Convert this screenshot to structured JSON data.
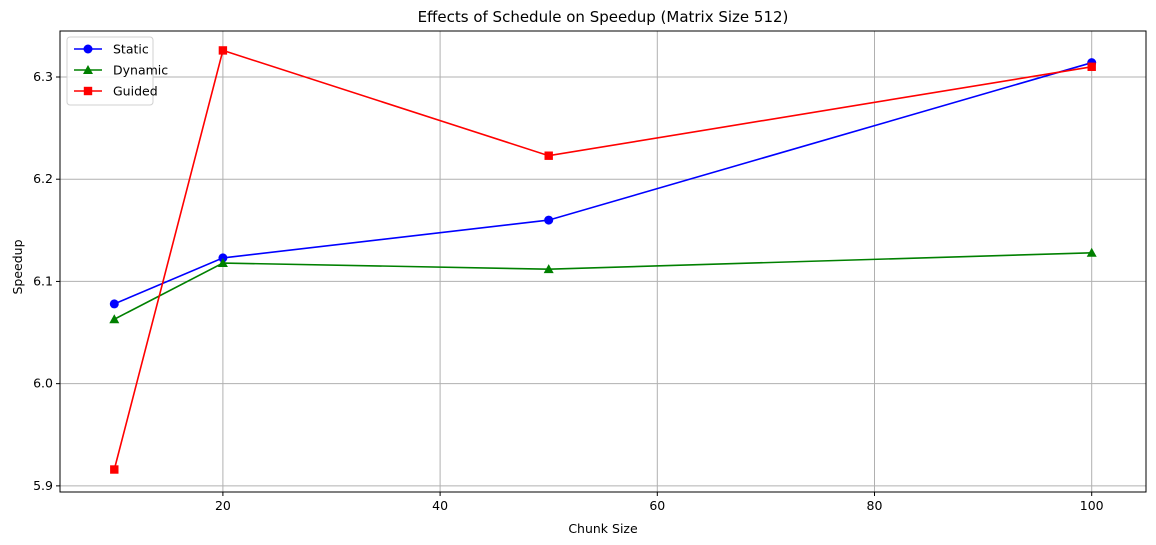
{
  "chart_data": {
    "type": "line",
    "title": "Effects of Schedule on Speedup (Matrix Size 512)",
    "xlabel": "Chunk Size",
    "ylabel": "Speedup",
    "x": [
      10,
      20,
      50,
      100
    ],
    "xlim": [
      5,
      105
    ],
    "ylim": [
      5.894,
      6.345
    ],
    "xticks": [
      20,
      40,
      60,
      80,
      100
    ],
    "yticks": [
      5.9,
      6.0,
      6.1,
      6.2,
      6.3
    ],
    "xtick_labels": [
      "20",
      "40",
      "60",
      "80",
      "100"
    ],
    "ytick_labels": [
      "5.9",
      "6.0",
      "6.1",
      "6.2",
      "6.3"
    ],
    "grid": true,
    "legend_position": "top-left",
    "series": [
      {
        "name": "Static",
        "color": "#0000ff",
        "marker": "circle",
        "values": [
          6.078,
          6.123,
          6.16,
          6.314
        ]
      },
      {
        "name": "Dynamic",
        "color": "#008000",
        "marker": "triangle",
        "values": [
          6.063,
          6.118,
          6.112,
          6.128
        ]
      },
      {
        "name": "Guided",
        "color": "#ff0000",
        "marker": "square",
        "values": [
          5.916,
          6.326,
          6.223,
          6.31
        ]
      }
    ]
  }
}
